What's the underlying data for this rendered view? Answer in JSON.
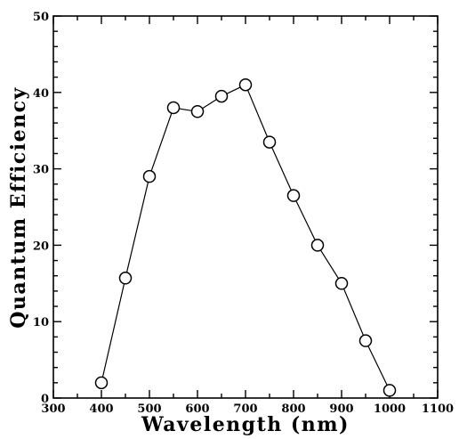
{
  "chart_data": {
    "type": "line",
    "title": "",
    "xlabel": "Wavelength (nm)",
    "ylabel": "Quantum Efficiency",
    "xlim": [
      300,
      1100
    ],
    "ylim": [
      0,
      50
    ],
    "x_ticks": [
      300,
      400,
      500,
      600,
      700,
      800,
      900,
      1000,
      1100
    ],
    "y_ticks": [
      0,
      10,
      20,
      30,
      40,
      50
    ],
    "x_tick_labels": [
      "300",
      "400",
      "500",
      "600",
      "700",
      "800",
      "900",
      "1000",
      "1100"
    ],
    "y_tick_labels": [
      "0",
      "10",
      "20",
      "30",
      "40",
      "50"
    ],
    "grid": false,
    "marker": "open-circle",
    "line_color": "#000000",
    "series": [
      {
        "x": [
          400,
          450,
          500,
          550,
          600,
          650,
          700,
          750,
          800,
          850,
          900,
          950,
          1000
        ],
        "values": [
          2,
          15.7,
          29,
          38,
          37.5,
          39.5,
          41,
          33.5,
          26.5,
          20,
          15,
          7.5,
          1
        ]
      }
    ]
  }
}
